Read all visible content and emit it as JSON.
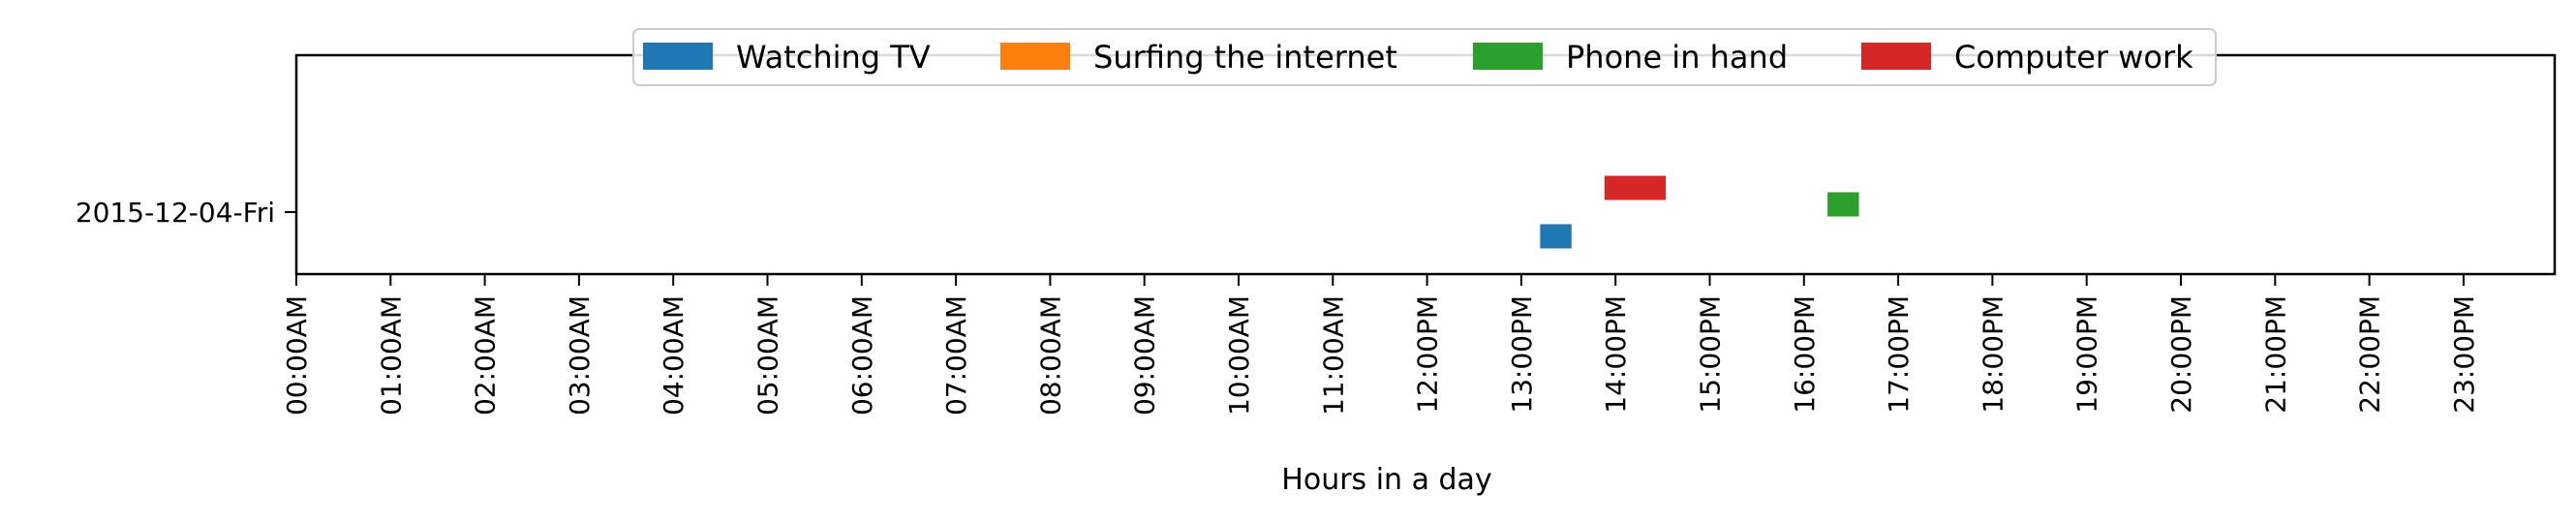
{
  "chart_data": {
    "type": "timeline",
    "xlabel": "Hours in a day",
    "ylabel": "",
    "xlim": [
      0,
      24
    ],
    "x_ticks": [
      "00:00AM",
      "01:00AM",
      "02:00AM",
      "03:00AM",
      "04:00AM",
      "05:00AM",
      "06:00AM",
      "07:00AM",
      "08:00AM",
      "09:00AM",
      "10:00AM",
      "11:00AM",
      "12:00PM",
      "13:00PM",
      "14:00PM",
      "15:00PM",
      "16:00PM",
      "17:00PM",
      "18:00PM",
      "19:00PM",
      "20:00PM",
      "21:00PM",
      "22:00PM",
      "23:00PM"
    ],
    "categories": [
      "2015-12-04-Fri"
    ],
    "legend_position": "top-center",
    "grid": false,
    "series": [
      {
        "name": "Watching TV",
        "color": "#1f77b4",
        "intervals": [
          {
            "day": "2015-12-04-Fri",
            "start": "13:12",
            "end": "13:32"
          }
        ]
      },
      {
        "name": "Surfing the internet",
        "color": "#ff7f0e",
        "intervals": []
      },
      {
        "name": "Phone in hand",
        "color": "#2ca02c",
        "intervals": [
          {
            "day": "2015-12-04-Fri",
            "start": "16:15",
            "end": "16:35"
          }
        ]
      },
      {
        "name": "Computer work",
        "color": "#d62728",
        "intervals": [
          {
            "day": "2015-12-04-Fri",
            "start": "13:53",
            "end": "14:32"
          }
        ]
      }
    ]
  }
}
